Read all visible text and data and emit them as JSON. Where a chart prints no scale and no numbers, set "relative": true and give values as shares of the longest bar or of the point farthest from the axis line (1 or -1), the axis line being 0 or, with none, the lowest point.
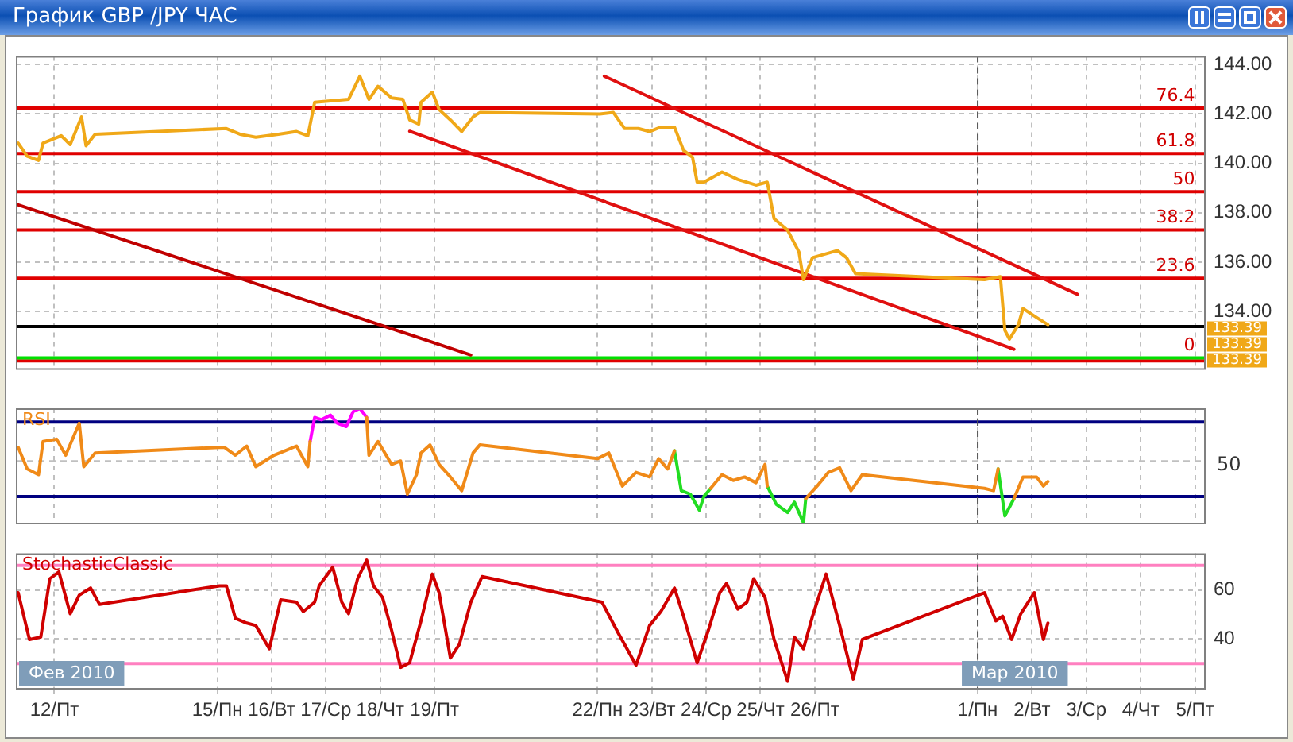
{
  "chart_data": [
    {
      "type": "line",
      "title": "График GBP /JPY  ЧАС",
      "xlim": [
        "2010-02-11T07:00",
        "2010-03-05T04:00"
      ],
      "xticks": [
        "2010-02-12",
        "2010-02-15",
        "2010-02-16",
        "2010-02-17",
        "2010-02-18",
        "2010-02-19",
        "2010-02-22",
        "2010-02-23",
        "2010-02-24",
        "2010-02-25",
        "2010-02-26",
        "2010-03-01",
        "2010-03-02",
        "2010-03-03",
        "2010-03-04",
        "2010-03-05"
      ],
      "ylim": [
        131.7,
        144.35
      ],
      "yticks": [
        {
          "value": 132,
          "label": null
        },
        {
          "value": 134,
          "label": "134.00"
        },
        {
          "value": 136,
          "label": "136.00"
        },
        {
          "value": 138,
          "label": "138.00"
        },
        {
          "value": 140,
          "label": "140.00"
        },
        {
          "value": 142,
          "label": "142.00"
        },
        {
          "value": 144,
          "label": "144.00"
        }
      ],
      "tick_labels": "y",
      "grid": true,
      "marker": "none",
      "series": [
        {
          "color": "#f0a818",
          "x": [
            "2010-02-11T08:00",
            "2010-02-11T12:00",
            "2010-02-11T17:00",
            "2010-02-11T19:00",
            "2010-02-12T03:00",
            "2010-02-12T07:00",
            "2010-02-12T12:00",
            "2010-02-12T14:00",
            "2010-02-12T18:00",
            "2010-02-15T04:00",
            "2010-02-15T10:00",
            "2010-02-15T17:00",
            "2010-02-16T03:00",
            "2010-02-16T11:00",
            "2010-02-16T16:00",
            "2010-02-16T19:00",
            "2010-02-17T02:00",
            "2010-02-17T10:00",
            "2010-02-17T15:00",
            "2010-02-17T19:00",
            "2010-02-17T23:00",
            "2010-02-18T05:00",
            "2010-02-18T10:00",
            "2010-02-18T13:00",
            "2010-02-18T17:00",
            "2010-02-18T18:00",
            "2010-02-18T23:00",
            "2010-02-19T02:00",
            "2010-02-19T07:00",
            "2010-02-19T12:00",
            "2010-02-19T17:00",
            "2010-02-19T20:00",
            "2010-02-22T01:00",
            "2010-02-22T07:00",
            "2010-02-22T12:00",
            "2010-02-22T18:00",
            "2010-02-22T23:00",
            "2010-02-23T04:00",
            "2010-02-23T10:00",
            "2010-02-23T14:00",
            "2010-02-23T18:00",
            "2010-02-23T20:00",
            "2010-02-23T23:00",
            "2010-02-24T07:00",
            "2010-02-24T14:00",
            "2010-02-24T22:00",
            "2010-02-25T03:00",
            "2010-02-25T06:00",
            "2010-02-25T12:00",
            "2010-02-25T17:00",
            "2010-02-25T19:00",
            "2010-02-25T23:00",
            "2010-02-26T10:00",
            "2010-02-26T14:00",
            "2010-02-26T18:00",
            "2010-03-01T03:00",
            "2010-03-01T10:00",
            "2010-03-01T12:00",
            "2010-03-01T14:00",
            "2010-03-01T18:00",
            "2010-03-01T20:00",
            "2010-03-02T02:00",
            "2010-03-02T07:00"
          ],
          "values": [
            140.82,
            140.29,
            140.12,
            140.82,
            141.12,
            140.76,
            141.88,
            140.71,
            141.18,
            141.41,
            141.18,
            141.06,
            141.18,
            141.29,
            141.12,
            142.47,
            142.53,
            142.59,
            143.53,
            142.59,
            143.12,
            142.65,
            142.59,
            141.76,
            141.59,
            142.47,
            142.88,
            142.18,
            141.76,
            141.29,
            141.88,
            142.06,
            142.0,
            142.06,
            141.41,
            141.41,
            141.29,
            141.47,
            141.47,
            140.53,
            140.24,
            139.24,
            139.24,
            139.65,
            139.35,
            139.12,
            139.24,
            137.76,
            137.29,
            136.41,
            135.29,
            136.18,
            136.47,
            136.18,
            135.53,
            135.29,
            135.41,
            133.24,
            132.88,
            133.47,
            134.12,
            133.76,
            133.47
          ]
        },
        {
          "color": "#e01010",
          "x": [
            "2010-02-22T03:00",
            "2010-03-02T20:00"
          ],
          "values": [
            143.53,
            134.7
          ]
        },
        {
          "color": "#e01010",
          "x": [
            "2010-02-18T13:00",
            "2010-03-01T16:00"
          ],
          "values": [
            141.3,
            132.47
          ]
        },
        {
          "color": "#c00000",
          "x": [
            "2010-02-11T07:00",
            "2010-02-19T16:00"
          ],
          "values": [
            138.35,
            132.24
          ]
        }
      ],
      "ref_lines": [
        {
          "axis": "y",
          "value": 142.24,
          "color": "#e00000"
        },
        {
          "axis": "y",
          "value": 140.4,
          "color": "#e00000"
        },
        {
          "axis": "y",
          "value": 138.85,
          "color": "#e00000"
        },
        {
          "axis": "y",
          "value": 137.3,
          "color": "#e00000"
        },
        {
          "axis": "y",
          "value": 135.35,
          "color": "#e00000"
        },
        {
          "axis": "y",
          "value": 133.39,
          "color": "#000000"
        },
        {
          "axis": "y",
          "value": 132.0,
          "color": "#e00000"
        },
        {
          "axis": "y",
          "value": 132.12,
          "color": "#00e000"
        },
        {
          "axis": "x",
          "value": "2010-03-01",
          "color": "#555555",
          "line_style": "dashed"
        }
      ],
      "annotations": [
        {
          "text": "76.4",
          "x": "2010-03-05",
          "y": 142.24
        },
        {
          "text": "61.8",
          "x": "2010-03-05",
          "y": 140.4
        },
        {
          "text": "50",
          "x": "2010-03-05",
          "y": 138.85
        },
        {
          "text": "38.2",
          "x": "2010-03-05",
          "y": 137.3
        },
        {
          "text": "23.6",
          "x": "2010-03-05",
          "y": 135.35
        },
        {
          "text": "0",
          "x": "2010-03-05",
          "y": 132.12
        },
        "133.39",
        "133.39",
        "133.39"
      ]
    },
    {
      "type": "line",
      "relative": true,
      "xlim": [
        "2010-02-11T07:00",
        "2010-03-05T04:00"
      ],
      "xticks": [
        "2010-02-12",
        "2010-02-15",
        "2010-02-16",
        "2010-02-17",
        "2010-02-18",
        "2010-02-19",
        "2010-02-22",
        "2010-02-23",
        "2010-02-24",
        "2010-02-25",
        "2010-02-26",
        "2010-03-01",
        "2010-03-02",
        "2010-03-03",
        "2010-03-04",
        "2010-03-05"
      ],
      "tick_labels": false,
      "grid": "x",
      "marker": "none",
      "series": [
        {
          "name": "RSI",
          "color": "#f08a18",
          "x": [
            "2010-02-11T08:00",
            "2010-02-11T12:00",
            "2010-02-11T17:00",
            "2010-02-11T19:00",
            "2010-02-12T01:00",
            "2010-02-12T05:00",
            "2010-02-12T11:00",
            "2010-02-12T13:00",
            "2010-02-12T18:00",
            "2010-02-15T03:00",
            "2010-02-15T08:00",
            "2010-02-15T13:00",
            "2010-02-15T17:00",
            "2010-02-16T01:00",
            "2010-02-16T06:00",
            "2010-02-16T11:00",
            "2010-02-16T16:00",
            "2010-02-16T17:00",
            "2010-02-16T19:00",
            "2010-02-16T22:00",
            "2010-02-17T02:00",
            "2010-02-17T05:00",
            "2010-02-17T09:00",
            "2010-02-17T12:00",
            "2010-02-17T15:00",
            "2010-02-17T18:00",
            "2010-02-17T19:00",
            "2010-02-17T23:00",
            "2010-02-18T05:00",
            "2010-02-18T09:00",
            "2010-02-18T12:00",
            "2010-02-18T16:00",
            "2010-02-18T18:00",
            "2010-02-18T22:00",
            "2010-02-19T02:00",
            "2010-02-19T07:00",
            "2010-02-19T12:00",
            "2010-02-19T17:00",
            "2010-02-19T20:00",
            "2010-02-22T00:00",
            "2010-02-22T05:00",
            "2010-02-22T11:00",
            "2010-02-22T17:00",
            "2010-02-22T23:00",
            "2010-02-23T03:00",
            "2010-02-23T07:00",
            "2010-02-23T10:00",
            "2010-02-23T13:00",
            "2010-02-23T17:00",
            "2010-02-23T21:00",
            "2010-02-23T23:00",
            "2010-02-24T02:00",
            "2010-02-24T07:00",
            "2010-02-24T12:00",
            "2010-02-24T17:00",
            "2010-02-24T22:00",
            "2010-02-25T02:00",
            "2010-02-25T03:00",
            "2010-02-25T07:00",
            "2010-02-25T12:00",
            "2010-02-25T15:00",
            "2010-02-25T19:00",
            "2010-02-25T20:00",
            "2010-02-26T01:00",
            "2010-02-26T06:00",
            "2010-02-26T11:00",
            "2010-02-26T16:00",
            "2010-02-26T21:00",
            "2010-03-01T03:00",
            "2010-03-01T07:00",
            "2010-03-01T09:00",
            "2010-03-01T12:00",
            "2010-03-01T16:00",
            "2010-03-01T20:00",
            "2010-03-02T02:00",
            "2010-03-02T05:00",
            "2010-03-02T07:00"
          ],
          "values": [
            0.66,
            0.47,
            0.42,
            0.71,
            0.73,
            0.59,
            0.87,
            0.49,
            0.61,
            0.66,
            0.59,
            0.67,
            0.49,
            0.59,
            0.63,
            0.67,
            0.49,
            0.71,
            null,
            null,
            null,
            null,
            null,
            null,
            null,
            0.92,
            0.59,
            0.71,
            0.51,
            0.54,
            0.25,
            0.42,
            0.61,
            0.68,
            0.51,
            0.4,
            0.28,
            0.61,
            0.68,
            0.56,
            0.61,
            0.32,
            0.44,
            0.4,
            0.56,
            0.47,
            0.63,
            null,
            null,
            null,
            null,
            0.3,
            0.42,
            0.37,
            0.4,
            0.35,
            0.51,
            0.32,
            null,
            null,
            null,
            null,
            0.21,
            0.32,
            0.44,
            0.48,
            0.28,
            0.42,
            0.3,
            0.28,
            0.47,
            null,
            0.21,
            0.4,
            0.4,
            0.32,
            0.36
          ]
        },
        {
          "color": "#ff00ff",
          "x": [
            "2010-02-16T17:00",
            "2010-02-16T19:00",
            "2010-02-16T22:00",
            "2010-02-17T02:00",
            "2010-02-17T05:00",
            "2010-02-17T09:00",
            "2010-02-17T12:00",
            "2010-02-17T15:00",
            "2010-02-17T18:00"
          ],
          "values": [
            0.71,
            0.92,
            0.9,
            0.94,
            0.87,
            0.84,
            0.97,
            1.0,
            0.92
          ]
        },
        {
          "color": "#22dd22",
          "x": [
            "2010-02-23T10:00",
            "2010-02-23T13:00",
            "2010-02-23T17:00",
            "2010-02-23T21:00",
            "2010-02-23T23:00",
            "2010-02-24T02:00",
            "2010-02-24T14:00",
            "2010-02-25T03:00",
            "2010-02-25T07:00",
            "2010-02-25T12:00",
            "2010-02-25T15:00",
            "2010-02-25T19:00",
            "2010-02-25T20:00",
            "2010-02-26T17:00",
            "2010-03-01T09:00",
            "2010-03-01T12:00",
            "2010-03-01T16:00"
          ],
          "values": [
            0.63,
            0.28,
            0.25,
            0.11,
            0.23,
            0.3,
            null,
            0.32,
            0.16,
            0.09,
            0.18,
            0.0,
            0.21,
            null,
            0.47,
            0.06,
            0.21
          ]
        }
      ],
      "ref_lines": [
        {
          "axis": "y",
          "value": 0.88,
          "color": "#000080"
        },
        {
          "axis": "y",
          "value": 0.23,
          "color": "#000080"
        },
        {
          "axis": "y",
          "value": 0.54,
          "color": "#c0c0c0",
          "line_style": "dashed"
        },
        {
          "axis": "x",
          "value": "2010-03-01",
          "color": "#555555",
          "line_style": "dashed"
        }
      ],
      "annotations": [
        "50"
      ]
    },
    {
      "type": "line",
      "xlim": [
        "2010-02-11T07:00",
        "2010-03-05T04:00"
      ],
      "xticks": [
        {
          "value": "2010-02-12",
          "label": "12/Пт"
        },
        {
          "value": "2010-02-15",
          "label": "15/Пн"
        },
        {
          "value": "2010-02-16",
          "label": "16/Вт"
        },
        {
          "value": "2010-02-17",
          "label": "17/Ср"
        },
        {
          "value": "2010-02-18",
          "label": "18/Чт"
        },
        {
          "value": "2010-02-19",
          "label": "19/Пт"
        },
        {
          "value": "2010-02-22",
          "label": "22/Пн"
        },
        {
          "value": "2010-02-23",
          "label": "23/Вт"
        },
        {
          "value": "2010-02-24",
          "label": "24/Ср"
        },
        {
          "value": "2010-02-25",
          "label": "25/Чт"
        },
        {
          "value": "2010-02-26",
          "label": "26/Пт"
        },
        {
          "value": "2010-03-01",
          "label": "1/Пн"
        },
        {
          "value": "2010-03-02",
          "label": "2/Вт"
        },
        {
          "value": "2010-03-03",
          "label": "3/Ср"
        },
        {
          "value": "2010-03-04",
          "label": "4/Чт"
        },
        {
          "value": "2010-03-05",
          "label": "5/Пт"
        }
      ],
      "ylim": [
        20,
        75
      ],
      "yticks": [
        40,
        60
      ],
      "grid": true,
      "marker": "none",
      "series": [
        {
          "name": "StochasticClassic",
          "color": "#d00000",
          "x": [
            "2010-02-11T08:00",
            "2010-02-11T13:00",
            "2010-02-11T18:00",
            "2010-02-11T22:00",
            "2010-02-12T02:00",
            "2010-02-12T07:00",
            "2010-02-12T11:00",
            "2010-02-12T16:00",
            "2010-02-12T20:00",
            "2010-02-15T01:00",
            "2010-02-15T04:00",
            "2010-02-15T08:00",
            "2010-02-15T13:00",
            "2010-02-15T17:00",
            "2010-02-15T23:00",
            "2010-02-16T04:00",
            "2010-02-16T11:00",
            "2010-02-16T14:00",
            "2010-02-16T19:00",
            "2010-02-16T21:00",
            "2010-02-17T03:00",
            "2010-02-17T07:00",
            "2010-02-17T10:00",
            "2010-02-17T14:00",
            "2010-02-17T18:00",
            "2010-02-17T21:00",
            "2010-02-18T01:00",
            "2010-02-18T05:00",
            "2010-02-18T09:00",
            "2010-02-18T13:00",
            "2010-02-18T18:00",
            "2010-02-18T23:00",
            "2010-02-19T02:00",
            "2010-02-19T07:00",
            "2010-02-19T11:00",
            "2010-02-19T16:00",
            "2010-02-19T21:00",
            "2010-02-22T02:00",
            "2010-02-22T09:00",
            "2010-02-22T17:00",
            "2010-02-22T23:00",
            "2010-02-23T04:00",
            "2010-02-23T10:00",
            "2010-02-23T14:00",
            "2010-02-23T20:00",
            "2010-02-24T01:00",
            "2010-02-24T06:00",
            "2010-02-24T09:00",
            "2010-02-24T14:00",
            "2010-02-24T18:00",
            "2010-02-24T21:00",
            "2010-02-25T02:00",
            "2010-02-25T06:00",
            "2010-02-25T12:00",
            "2010-02-25T15:00",
            "2010-02-25T19:00",
            "2010-02-25T23:00",
            "2010-02-26T05:00",
            "2010-02-26T11:00",
            "2010-02-26T17:00",
            "2010-02-26T21:00",
            "2010-03-01T03:00",
            "2010-03-01T08:00",
            "2010-03-01T11:00",
            "2010-03-01T15:00",
            "2010-03-01T19:00",
            "2010-03-02T01:00",
            "2010-03-02T05:00",
            "2010-03-02T07:00"
          ],
          "values": [
            58.9,
            39.8,
            40.8,
            64.6,
            67.4,
            50.3,
            57.9,
            60.8,
            54.1,
            61.7,
            61.7,
            48.4,
            46.5,
            45.5,
            36.0,
            56.0,
            55.0,
            51.2,
            55.0,
            61.7,
            69.3,
            55.0,
            50.3,
            64.6,
            72.2,
            61.7,
            57.0,
            43.6,
            28.4,
            30.3,
            47.4,
            66.5,
            58.9,
            32.2,
            37.9,
            55.0,
            65.5,
            55.0,
            42.7,
            29.3,
            45.5,
            51.2,
            60.8,
            49.3,
            30.3,
            43.6,
            58.9,
            62.7,
            52.2,
            55.0,
            64.6,
            57.0,
            39.8,
            22.7,
            40.8,
            36.0,
            49.3,
            66.5,
            45.5,
            23.6,
            39.8,
            58.9,
            47.4,
            49.3,
            39.8,
            50.3,
            58.9,
            39.8,
            46.5
          ]
        }
      ],
      "ref_lines": [
        {
          "axis": "y",
          "value": 70,
          "color": "#ff80c0"
        },
        {
          "axis": "y",
          "value": 30,
          "color": "#ff80c0"
        },
        {
          "axis": "x",
          "value": "2010-03-01",
          "label": "Мар 2010",
          "color": "#555555",
          "line_style": "dashed"
        }
      ],
      "annotations": [
        "Фев 2010"
      ]
    }
  ]
}
